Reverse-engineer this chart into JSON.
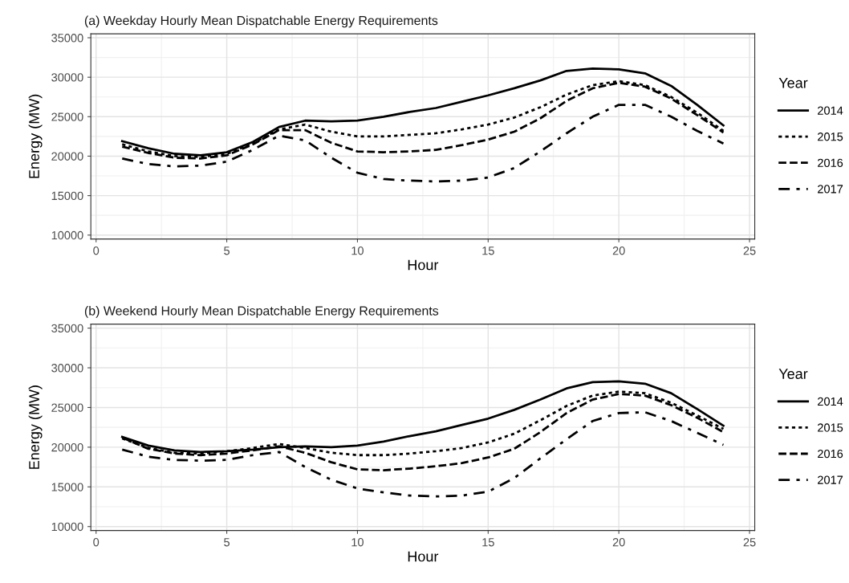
{
  "chart_data": [
    {
      "type": "line",
      "title": "(a) Weekday Hourly Mean Dispatchable Energy Requirements",
      "xlabel": "Hour",
      "ylabel": "Energy (MW)",
      "legend_title": "Year",
      "legend": "right",
      "grid": true,
      "x": [
        1,
        2,
        3,
        4,
        5,
        6,
        7,
        8,
        9,
        10,
        11,
        12,
        13,
        14,
        15,
        16,
        17,
        18,
        19,
        20,
        21,
        22,
        23,
        24
      ],
      "xlim": [
        -0.2,
        25.2
      ],
      "xticks": [
        0,
        5,
        10,
        15,
        20,
        25
      ],
      "ylim": [
        9500,
        35500
      ],
      "yticks": [
        10000,
        15000,
        20000,
        25000,
        30000,
        35000
      ],
      "series": [
        {
          "name": "2014",
          "color": "#000000",
          "line_style": "solid",
          "values": [
            21900,
            21000,
            20300,
            20100,
            20500,
            21800,
            23700,
            24500,
            24400,
            24500,
            25000,
            25600,
            26100,
            26900,
            27700,
            28600,
            29600,
            30800,
            31100,
            31000,
            30500,
            28900,
            26500,
            23900
          ]
        },
        {
          "name": "2015",
          "color": "#000000",
          "line_style": "dotted",
          "values": [
            21500,
            20600,
            20000,
            19900,
            20300,
            21600,
            23400,
            24000,
            23100,
            22500,
            22500,
            22700,
            22900,
            23400,
            24000,
            24900,
            26200,
            27800,
            29000,
            29500,
            29000,
            27500,
            25500,
            23200
          ]
        },
        {
          "name": "2016",
          "color": "#000000",
          "line_style": "dashed",
          "values": [
            21200,
            20400,
            19800,
            19700,
            20100,
            21500,
            23300,
            23300,
            21700,
            20600,
            20500,
            20600,
            20800,
            21400,
            22100,
            23100,
            24800,
            27000,
            28600,
            29300,
            28800,
            27300,
            25200,
            23000
          ]
        },
        {
          "name": "2017",
          "color": "#000000",
          "line_style": "dashdot",
          "values": [
            19700,
            19000,
            18700,
            18800,
            19300,
            20800,
            22600,
            22000,
            19800,
            17900,
            17100,
            16900,
            16800,
            16900,
            17300,
            18500,
            20600,
            22900,
            25000,
            26500,
            26500,
            25000,
            23200,
            21600
          ]
        }
      ]
    },
    {
      "type": "line",
      "title": "(b) Weekend Hourly Mean Dispatchable Energy Requirements",
      "xlabel": "Hour",
      "ylabel": "Energy (MW)",
      "legend_title": "Year",
      "legend": "right",
      "grid": true,
      "x": [
        1,
        2,
        3,
        4,
        5,
        6,
        7,
        8,
        9,
        10,
        11,
        12,
        13,
        14,
        15,
        16,
        17,
        18,
        19,
        20,
        21,
        22,
        23,
        24
      ],
      "xlim": [
        -0.2,
        25.2
      ],
      "xticks": [
        0,
        5,
        10,
        15,
        20,
        25
      ],
      "ylim": [
        9500,
        35500
      ],
      "yticks": [
        10000,
        15000,
        20000,
        25000,
        30000,
        35000
      ],
      "series": [
        {
          "name": "2014",
          "color": "#000000",
          "line_style": "solid",
          "values": [
            21300,
            20200,
            19600,
            19400,
            19500,
            19700,
            20000,
            20100,
            20000,
            20200,
            20700,
            21400,
            22000,
            22800,
            23600,
            24700,
            26000,
            27400,
            28200,
            28300,
            28000,
            26800,
            24800,
            22700
          ]
        },
        {
          "name": "2015",
          "color": "#000000",
          "line_style": "dotted",
          "values": [
            21100,
            19900,
            19300,
            19200,
            19500,
            19900,
            20400,
            19900,
            19300,
            19000,
            19000,
            19200,
            19500,
            19900,
            20600,
            21700,
            23400,
            25200,
            26500,
            27000,
            26800,
            25600,
            24000,
            22300
          ]
        },
        {
          "name": "2016",
          "color": "#000000",
          "line_style": "dashed",
          "values": [
            21200,
            19800,
            19200,
            19000,
            19200,
            19600,
            20100,
            19300,
            18100,
            17200,
            17100,
            17300,
            17600,
            18000,
            18700,
            19800,
            21900,
            24300,
            26000,
            26700,
            26500,
            25300,
            23700,
            21900
          ]
        },
        {
          "name": "2017",
          "color": "#000000",
          "line_style": "dashdot",
          "values": [
            19700,
            18800,
            18400,
            18300,
            18400,
            19000,
            19400,
            17500,
            15900,
            14800,
            14300,
            13900,
            13800,
            13900,
            14400,
            16100,
            18600,
            21000,
            23300,
            24300,
            24400,
            23300,
            21800,
            20300
          ]
        }
      ]
    }
  ]
}
